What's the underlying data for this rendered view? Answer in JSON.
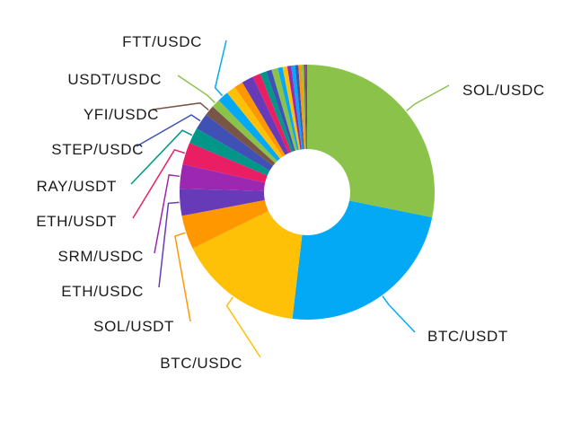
{
  "chart_data": {
    "type": "pie",
    "variant": "donut",
    "title": "",
    "legend": "none",
    "unit": "percent (estimated share)",
    "slices": [
      {
        "label": "SOL/USDC",
        "value": 28.2,
        "color": "#8BC34A"
      },
      {
        "label": "BTC/USDT",
        "value": 23.7,
        "color": "#03A9F4"
      },
      {
        "label": "BTC/USDC",
        "value": 15.9,
        "color": "#FFC107"
      },
      {
        "label": "SOL/USDT",
        "value": 4.3,
        "color": "#FF9800"
      },
      {
        "label": "ETH/USDC",
        "value": 3.4,
        "color": "#673AB7"
      },
      {
        "label": "SRM/USDC",
        "value": 3.1,
        "color": "#9C27B0"
      },
      {
        "label": "ETH/USDT",
        "value": 2.8,
        "color": "#E91E63"
      },
      {
        "label": "RAY/USDT",
        "value": 2.0,
        "color": "#009688"
      },
      {
        "label": "STEP/USDC",
        "value": 2.1,
        "color": "#3F51B5"
      },
      {
        "label": "YFI/USDC",
        "value": 1.3,
        "color": "#795548"
      },
      {
        "label": "USDT/USDC",
        "value": 1.1,
        "color": "#8BC34A"
      },
      {
        "label": "FTT/USDC",
        "value": 1.4,
        "color": "#03A9F4"
      },
      {
        "label": "",
        "value": 1.2,
        "color": "#FFC107"
      },
      {
        "label": "",
        "value": 1.1,
        "color": "#FF9800"
      },
      {
        "label": "",
        "value": 1.5,
        "color": "#673AB7"
      },
      {
        "label": "",
        "value": 1.0,
        "color": "#E91E63"
      },
      {
        "label": "",
        "value": 0.8,
        "color": "#009688"
      },
      {
        "label": "",
        "value": 0.7,
        "color": "#3F51B5"
      },
      {
        "label": "",
        "value": 0.8,
        "color": "#8BC34A"
      },
      {
        "label": "",
        "value": 0.6,
        "color": "#03A9F4"
      },
      {
        "label": "",
        "value": 0.6,
        "color": "#FFC107"
      },
      {
        "label": "",
        "value": 0.5,
        "color": "#9C27B0"
      },
      {
        "label": "",
        "value": 0.5,
        "color": "#03A9F4"
      },
      {
        "label": "",
        "value": 0.4,
        "color": "#3F51B5"
      },
      {
        "label": "",
        "value": 0.4,
        "color": "#FF9800"
      },
      {
        "label": "",
        "value": 0.3,
        "color": "#8BC34A"
      },
      {
        "label": "",
        "value": 0.2,
        "color": "#795548"
      },
      {
        "label": "",
        "value": 0.2,
        "color": "#9C27B0"
      }
    ]
  }
}
